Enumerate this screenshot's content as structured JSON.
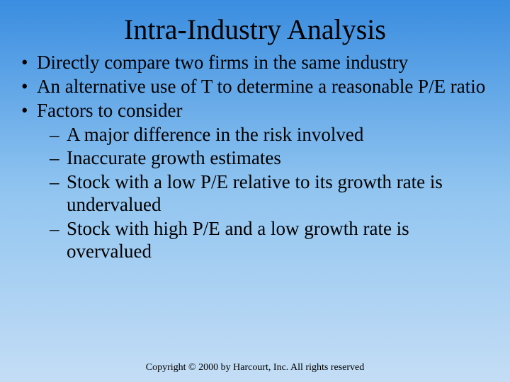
{
  "title": "Intra-Industry Analysis",
  "bullets": [
    {
      "text": "Directly compare two firms in the same industry"
    },
    {
      "text": "An alternative use of T to determine a reasonable P/E ratio"
    },
    {
      "text": "Factors to consider"
    }
  ],
  "subs": [
    {
      "text": "A major difference in the risk involved"
    },
    {
      "text": "Inaccurate growth estimates"
    },
    {
      "text": "Stock with a low P/E relative to its growth rate is undervalued"
    },
    {
      "text": "Stock with high P/E and a low growth rate is overvalued"
    }
  ],
  "footer": "Copyright © 2000 by Harcourt, Inc.  All rights reserved",
  "colors": {
    "gradient_top": "#3a8de0",
    "gradient_mid": "#91c5f0",
    "gradient_bottom": "#c4ddf5",
    "text": "#000000"
  },
  "typography": {
    "title_fontsize": 40,
    "body_fontsize": 27,
    "footer_fontsize": 14,
    "font_family": "Times New Roman"
  }
}
